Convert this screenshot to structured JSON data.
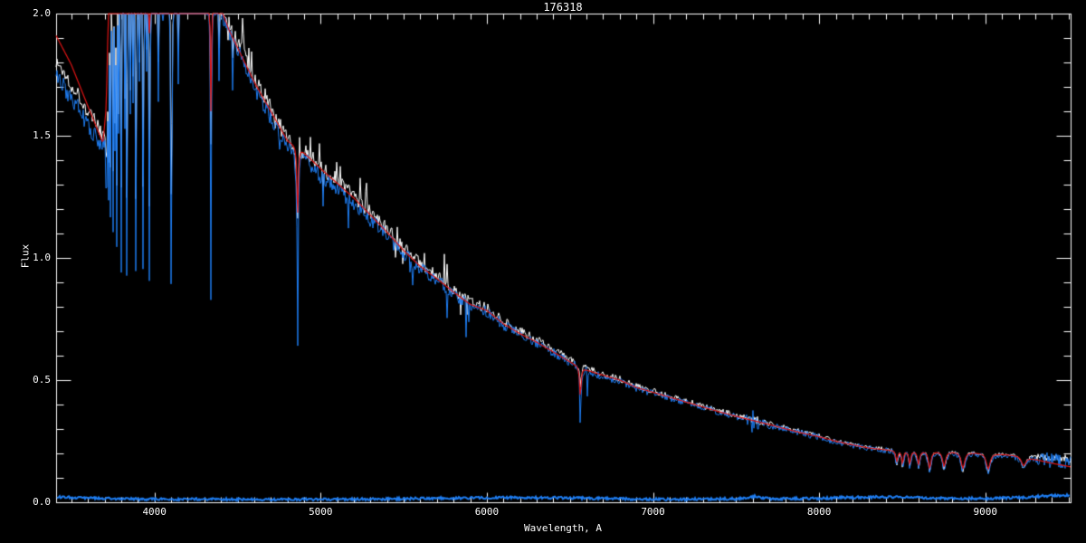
{
  "chart_data": {
    "type": "line",
    "title": "176318",
    "xlabel": "Wavelength, A",
    "ylabel": "Flux",
    "xlim": [
      3408,
      9513
    ],
    "ylim": [
      0.0,
      2.0
    ],
    "x_major_ticks": [
      4000,
      5000,
      6000,
      7000,
      8000,
      9000
    ],
    "x_minor_step": 100,
    "y_major_ticks": [
      0.0,
      0.5,
      1.0,
      1.5,
      2.0
    ],
    "y_minor_step": 0.1,
    "background_color": "#000000",
    "axis_color": "#ffffff",
    "legend": "none",
    "series": [
      {
        "name": "observed-spectrum",
        "color": "#ffffff",
        "role": "white",
        "anchors": [
          [
            3408,
            1.8
          ],
          [
            3450,
            1.765
          ],
          [
            3500,
            1.71
          ],
          [
            3550,
            1.66
          ],
          [
            3600,
            1.6
          ],
          [
            3650,
            1.545
          ],
          [
            3685,
            1.51
          ],
          [
            3700,
            1.53
          ],
          [
            3710,
            1.6
          ],
          [
            3718,
            1.75
          ],
          [
            3726,
            1.95
          ],
          [
            3740,
            2.1
          ],
          [
            3800,
            2.15
          ],
          [
            3900,
            2.15
          ],
          [
            4000,
            2.12
          ],
          [
            4100,
            2.1
          ],
          [
            4200,
            2.08
          ],
          [
            4300,
            2.06
          ],
          [
            4360,
            2.06
          ],
          [
            4400,
            2.03
          ],
          [
            4450,
            1.96
          ],
          [
            4500,
            1.89
          ],
          [
            4550,
            1.815
          ],
          [
            4600,
            1.74
          ],
          [
            4650,
            1.67
          ],
          [
            4700,
            1.615
          ],
          [
            4750,
            1.555
          ],
          [
            4800,
            1.5
          ],
          [
            4830,
            1.465
          ],
          [
            4861,
            1.44
          ],
          [
            4900,
            1.44
          ],
          [
            4950,
            1.415
          ],
          [
            5000,
            1.37
          ],
          [
            5100,
            1.315
          ],
          [
            5200,
            1.255
          ],
          [
            5300,
            1.185
          ],
          [
            5400,
            1.115
          ],
          [
            5500,
            1.04
          ],
          [
            5600,
            0.975
          ],
          [
            5700,
            0.925
          ],
          [
            5800,
            0.87
          ],
          [
            5900,
            0.82
          ],
          [
            6000,
            0.795
          ],
          [
            6100,
            0.74
          ],
          [
            6200,
            0.7
          ],
          [
            6300,
            0.665
          ],
          [
            6400,
            0.625
          ],
          [
            6500,
            0.585
          ],
          [
            6563,
            0.56
          ],
          [
            6650,
            0.535
          ],
          [
            6700,
            0.525
          ],
          [
            6800,
            0.505
          ],
          [
            6900,
            0.475
          ],
          [
            7000,
            0.455
          ],
          [
            7100,
            0.435
          ],
          [
            7200,
            0.415
          ],
          [
            7300,
            0.395
          ],
          [
            7400,
            0.375
          ],
          [
            7500,
            0.357
          ],
          [
            7600,
            0.34
          ],
          [
            7700,
            0.322
          ],
          [
            7800,
            0.305
          ],
          [
            7900,
            0.288
          ],
          [
            8000,
            0.272
          ],
          [
            8100,
            0.253
          ],
          [
            8200,
            0.238
          ],
          [
            8300,
            0.225
          ],
          [
            8400,
            0.218
          ],
          [
            8500,
            0.212
          ],
          [
            8600,
            0.21
          ],
          [
            8700,
            0.209
          ],
          [
            8800,
            0.208
          ],
          [
            8900,
            0.205
          ],
          [
            9000,
            0.202
          ],
          [
            9100,
            0.198
          ],
          [
            9200,
            0.193
          ],
          [
            9300,
            0.188
          ],
          [
            9400,
            0.183
          ],
          [
            9513,
            0.178
          ]
        ]
      },
      {
        "name": "observed-spectrum-blue",
        "color": "#1e7df2",
        "role": "blue",
        "offset_anchors": [
          [
            3408,
            -0.06
          ],
          [
            3700,
            -0.055
          ],
          [
            3750,
            -0.04
          ],
          [
            4000,
            -0.03
          ],
          [
            4400,
            -0.035
          ],
          [
            4700,
            -0.04
          ],
          [
            5000,
            -0.035
          ],
          [
            5300,
            -0.03
          ],
          [
            5600,
            -0.02
          ],
          [
            6000,
            -0.015
          ],
          [
            6400,
            -0.012
          ],
          [
            6800,
            -0.01
          ],
          [
            7200,
            -0.008
          ],
          [
            7600,
            -0.008
          ],
          [
            8000,
            -0.006
          ],
          [
            8400,
            -0.005
          ],
          [
            9000,
            -0.004
          ],
          [
            9513,
            -0.015
          ]
        ]
      },
      {
        "name": "model-spectrum",
        "color": "#dd1414",
        "role": "red",
        "anchors": [
          [
            3408,
            1.91
          ],
          [
            3500,
            1.79
          ],
          [
            3600,
            1.62
          ],
          [
            3660,
            1.52
          ],
          [
            3690,
            1.47
          ],
          [
            3710,
            1.62
          ],
          [
            3722,
            2.0
          ],
          [
            3740,
            2.25
          ],
          [
            3900,
            2.3
          ],
          [
            4000,
            2.3
          ],
          [
            4100,
            2.28
          ],
          [
            4200,
            2.2
          ],
          [
            4300,
            2.1
          ],
          [
            4330,
            2.05
          ],
          [
            4360,
            2.05
          ],
          [
            4400,
            2.02
          ],
          [
            4450,
            1.93
          ],
          [
            4500,
            1.86
          ],
          [
            4600,
            1.72
          ],
          [
            4700,
            1.6
          ],
          [
            4800,
            1.48
          ],
          [
            4900,
            1.43
          ],
          [
            5000,
            1.365
          ],
          [
            5100,
            1.305
          ],
          [
            5200,
            1.245
          ],
          [
            5300,
            1.175
          ],
          [
            5400,
            1.105
          ],
          [
            5500,
            1.03
          ],
          [
            5600,
            0.965
          ],
          [
            5700,
            0.915
          ],
          [
            5800,
            0.86
          ],
          [
            5900,
            0.81
          ],
          [
            6000,
            0.785
          ],
          [
            6100,
            0.73
          ],
          [
            6200,
            0.69
          ],
          [
            6300,
            0.655
          ],
          [
            6400,
            0.615
          ],
          [
            6500,
            0.575
          ],
          [
            6563,
            0.55
          ],
          [
            6650,
            0.53
          ],
          [
            6700,
            0.52
          ],
          [
            6800,
            0.5
          ],
          [
            6900,
            0.47
          ],
          [
            7000,
            0.45
          ],
          [
            7100,
            0.43
          ],
          [
            7200,
            0.41
          ],
          [
            7300,
            0.39
          ],
          [
            7400,
            0.37
          ],
          [
            7500,
            0.352
          ],
          [
            7600,
            0.335
          ],
          [
            7700,
            0.318
          ],
          [
            7800,
            0.3
          ],
          [
            7900,
            0.283
          ],
          [
            8000,
            0.268
          ],
          [
            8100,
            0.25
          ],
          [
            8200,
            0.235
          ],
          [
            8300,
            0.222
          ],
          [
            8400,
            0.215
          ],
          [
            8500,
            0.208
          ],
          [
            8600,
            0.207
          ],
          [
            8700,
            0.206
          ],
          [
            8800,
            0.205
          ],
          [
            8900,
            0.202
          ],
          [
            9000,
            0.2
          ],
          [
            9100,
            0.196
          ],
          [
            9200,
            0.19
          ],
          [
            9300,
            0.175
          ],
          [
            9400,
            0.16
          ],
          [
            9513,
            0.145
          ]
        ]
      },
      {
        "name": "error-spectrum",
        "color": "#1e7df2",
        "role": "error",
        "anchors": [
          [
            3408,
            0.022
          ],
          [
            3600,
            0.018
          ],
          [
            3800,
            0.014
          ],
          [
            4000,
            0.012
          ],
          [
            4300,
            0.013
          ],
          [
            4600,
            0.011
          ],
          [
            5000,
            0.012
          ],
          [
            5400,
            0.013
          ],
          [
            5750,
            0.017
          ],
          [
            6100,
            0.019
          ],
          [
            6500,
            0.018
          ],
          [
            6800,
            0.014
          ],
          [
            7100,
            0.012
          ],
          [
            7500,
            0.014
          ],
          [
            7610,
            0.024
          ],
          [
            7700,
            0.014
          ],
          [
            8000,
            0.016
          ],
          [
            8200,
            0.02
          ],
          [
            8400,
            0.022
          ],
          [
            8700,
            0.017
          ],
          [
            9000,
            0.015
          ],
          [
            9250,
            0.02
          ],
          [
            9400,
            0.028
          ],
          [
            9513,
            0.03
          ]
        ]
      }
    ],
    "absorption_lines": [
      {
        "c": 3705,
        "hw": 3,
        "w": 1.43,
        "b": 1.3
      },
      {
        "c": 3712,
        "hw": 3,
        "w": 1.4,
        "b": 1.26
      },
      {
        "c": 3722,
        "hw": 3,
        "w": 1.38,
        "b": 1.22
      },
      {
        "c": 3734,
        "hw": 3,
        "w": 1.36,
        "b": 1.16
      },
      {
        "c": 3750,
        "hw": 3,
        "w": 1.33,
        "b": 1.1
      },
      {
        "c": 3760,
        "hw": 2,
        "w": 1.55,
        "b": 1.45
      },
      {
        "c": 3771,
        "hw": 3,
        "w": 1.3,
        "b": 1.03
      },
      {
        "c": 3782,
        "hw": 2,
        "w": 1.6,
        "b": 1.5
      },
      {
        "c": 3798,
        "hw": 3,
        "w": 1.28,
        "b": 0.97
      },
      {
        "c": 3820,
        "hw": 2,
        "w": 1.65,
        "b": 1.55
      },
      {
        "c": 3835,
        "hw": 4,
        "w": 1.26,
        "b": 0.92
      },
      {
        "c": 3855,
        "hw": 2,
        "w": 1.7,
        "b": 1.6
      },
      {
        "c": 3870,
        "hw": 2,
        "w": 1.75,
        "b": 1.65
      },
      {
        "c": 3889,
        "hw": 4,
        "w": 1.25,
        "b": 0.92
      },
      {
        "c": 3910,
        "hw": 2,
        "w": 1.8,
        "b": 1.7
      },
      {
        "c": 3933,
        "hw": 3,
        "w": 1.3,
        "b": 0.93
      },
      {
        "c": 3950,
        "hw": 2,
        "w": 1.85,
        "b": 1.75
      },
      {
        "c": 3970,
        "hw": 4,
        "w": 1.22,
        "b": 0.92,
        "r": 1.92
      },
      {
        "c": 4026,
        "hw": 2,
        "w": 1.8,
        "b": 1.62
      },
      {
        "c": 4102,
        "hw": 5,
        "w": 1.25,
        "b": 0.88
      },
      {
        "c": 4144,
        "hw": 2,
        "w": 1.85,
        "b": 1.7
      },
      {
        "c": 4340,
        "hw": 5,
        "w": 1.48,
        "b": 0.81,
        "r": 1.6
      },
      {
        "c": 4388,
        "hw": 2,
        "w": 1.88,
        "b": 1.75
      },
      {
        "c": 4472,
        "hw": 2,
        "w": 1.8,
        "b": 1.7
      },
      {
        "c": 4713,
        "hw": 2,
        "b": 1.55
      },
      {
        "c": 4861,
        "hw": 7,
        "w": 1.16,
        "b": 0.655,
        "r": 1.185
      },
      {
        "c": 5016,
        "hw": 2,
        "b": 1.22
      },
      {
        "c": 5169,
        "hw": 2,
        "b": 1.15
      },
      {
        "c": 5876,
        "hw": 2.5,
        "b": 0.7
      },
      {
        "c": 5893,
        "hw": 2.5,
        "b": 0.72
      },
      {
        "c": 6563,
        "hw": 8,
        "w": 0.475,
        "b": 0.315,
        "r": 0.44
      },
      {
        "c": 7594,
        "hw": 4,
        "w": 0.325,
        "b": 0.295
      },
      {
        "c": 8467,
        "hw": 10,
        "all": 0.158
      },
      {
        "c": 8502,
        "hw": 9,
        "all": 0.15
      },
      {
        "c": 8545,
        "hw": 10,
        "all": 0.148
      },
      {
        "c": 8598,
        "hw": 11,
        "all": 0.146
      },
      {
        "c": 8665,
        "hw": 13,
        "all": 0.131
      },
      {
        "c": 8752,
        "hw": 15,
        "all": 0.138
      },
      {
        "c": 8865,
        "hw": 17,
        "all": 0.13
      },
      {
        "c": 9017,
        "hw": 19,
        "all": 0.126
      },
      {
        "c": 9231,
        "hw": 22,
        "all": 0.14
      }
    ],
    "noise": {
      "seed": 1337,
      "white_amp_anchors": [
        [
          3408,
          0.03
        ],
        [
          3650,
          0.035
        ],
        [
          3720,
          0.03
        ],
        [
          4000,
          0.018
        ],
        [
          4300,
          0.022
        ],
        [
          4500,
          0.028
        ],
        [
          4800,
          0.03
        ],
        [
          5200,
          0.03
        ],
        [
          5600,
          0.028
        ],
        [
          6000,
          0.02
        ],
        [
          6400,
          0.016
        ],
        [
          6700,
          0.013
        ],
        [
          7000,
          0.012
        ],
        [
          7400,
          0.011
        ],
        [
          7560,
          0.013
        ],
        [
          7620,
          0.018
        ],
        [
          7700,
          0.01
        ],
        [
          8000,
          0.009
        ],
        [
          8300,
          0.008
        ],
        [
          8600,
          0.0075
        ],
        [
          9000,
          0.007
        ],
        [
          9250,
          0.0065
        ],
        [
          9350,
          0.014
        ],
        [
          9513,
          0.016
        ]
      ],
      "blue_scale": 0.8,
      "blue_extra_amp_anchors": [
        [
          3408,
          0.01
        ],
        [
          7550,
          0.004
        ],
        [
          7600,
          0.035
        ],
        [
          7650,
          0.006
        ],
        [
          9280,
          0.005
        ],
        [
          9360,
          0.022
        ],
        [
          9513,
          0.025
        ]
      ],
      "error_amp": 0.005
    }
  }
}
